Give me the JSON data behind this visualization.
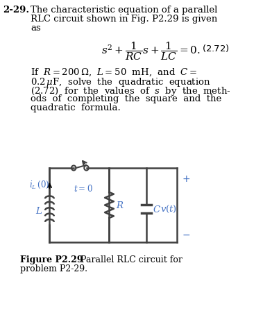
{
  "bg_color": "#ffffff",
  "label_color": "#4472c4",
  "circuit_color": "#404040",
  "problem_number": "2-29.",
  "text_color": "#000000",
  "fig_caption_bold": "Figure P2.29",
  "fig_caption_rest": "   Parallel RLC circuit for",
  "fig_caption_line2": "problem P2-29."
}
